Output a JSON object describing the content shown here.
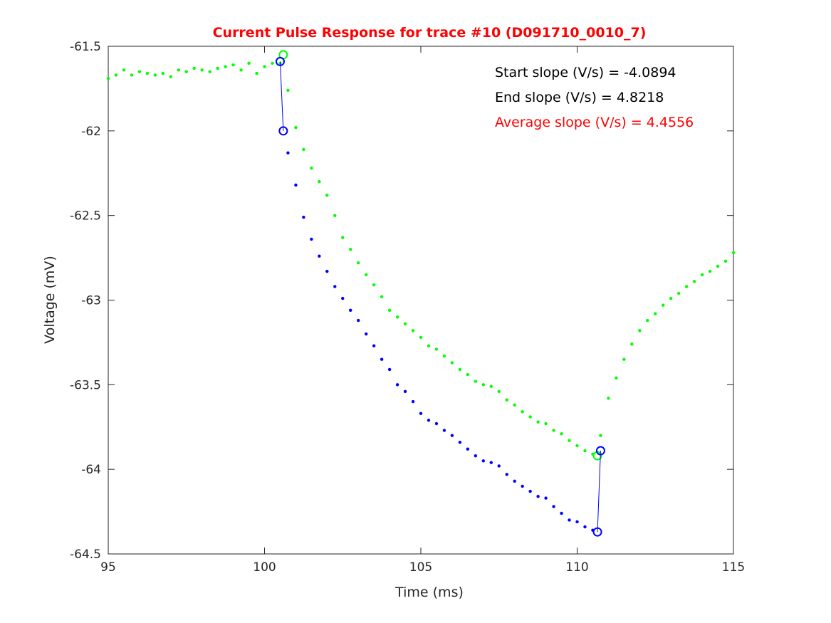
{
  "chart_data": {
    "type": "scatter",
    "title": "Current Pulse Response for trace #10 (D091710_0010_7)",
    "title_color": "#ff0000",
    "xlabel": "Time (ms)",
    "ylabel": "Voltage (mV)",
    "xlim": [
      95,
      115
    ],
    "xticks": [
      95,
      100,
      105,
      110,
      115
    ],
    "ylim": [
      -64.5,
      -61.5
    ],
    "yticks": [
      -61.5,
      -62,
      -62.5,
      -63,
      -63.5,
      -64,
      -64.5
    ],
    "annotations": [
      {
        "text": "Start slope (V/s) = -4.0894",
        "color": "#000000"
      },
      {
        "text": "End slope (V/s) = 4.8218",
        "color": "#000000"
      },
      {
        "text": "Average slope (V/s) = 4.4556",
        "color": "#ff0000"
      }
    ],
    "series": [
      {
        "style": "dots",
        "color": "#00ff00",
        "x": [
          95,
          95.25,
          95.5,
          95.75,
          96,
          96.25,
          96.5,
          96.75,
          97,
          97.25,
          97.5,
          97.75,
          98,
          98.25,
          98.5,
          98.75,
          99,
          99.25,
          99.5,
          99.75,
          100,
          100.25,
          100.5,
          100.75,
          101,
          101.25,
          101.5,
          101.75,
          102,
          102.25,
          102.5,
          102.75,
          103,
          103.25,
          103.5,
          103.75,
          104,
          104.25,
          104.5,
          104.75,
          105,
          105.25,
          105.5,
          105.75,
          106,
          106.25,
          106.5,
          106.75,
          107,
          107.25,
          107.5,
          107.75,
          108,
          108.25,
          108.5,
          108.75,
          109,
          109.25,
          109.5,
          109.75,
          110,
          110.25,
          110.5,
          110.75,
          111,
          111.25,
          111.5,
          111.75,
          112,
          112.25,
          112.5,
          112.75,
          113,
          113.25,
          113.5,
          113.75,
          114,
          114.25,
          114.5,
          114.75,
          115
        ],
        "values": [
          -61.69,
          -61.67,
          -61.64,
          -61.67,
          -61.65,
          -61.66,
          -61.67,
          -61.66,
          -61.68,
          -61.64,
          -61.65,
          -61.63,
          -61.64,
          -61.65,
          -61.63,
          -61.62,
          -61.61,
          -61.64,
          -61.6,
          -61.66,
          -61.62,
          -61.6,
          -61.6,
          -61.76,
          -61.98,
          -62.11,
          -62.22,
          -62.3,
          -62.38,
          -62.5,
          -62.63,
          -62.7,
          -62.78,
          -62.85,
          -62.91,
          -62.98,
          -63.06,
          -63.1,
          -63.14,
          -63.18,
          -63.22,
          -63.27,
          -63.29,
          -63.33,
          -63.37,
          -63.41,
          -63.44,
          -63.48,
          -63.5,
          -63.51,
          -63.54,
          -63.59,
          -63.62,
          -63.66,
          -63.69,
          -63.72,
          -63.73,
          -63.77,
          -63.79,
          -63.83,
          -63.86,
          -63.89,
          -63.91,
          -63.8,
          -63.58,
          -63.46,
          -63.35,
          -63.26,
          -63.18,
          -63.12,
          -63.08,
          -63.03,
          -62.99,
          -62.96,
          -62.92,
          -62.89,
          -62.85,
          -62.83,
          -62.8,
          -62.77,
          -62.72
        ]
      },
      {
        "style": "dots",
        "color": "#0000ff",
        "x": [
          100.75,
          101,
          101.25,
          101.5,
          101.75,
          102,
          102.25,
          102.5,
          102.75,
          103,
          103.25,
          103.5,
          103.75,
          104,
          104.25,
          104.5,
          104.75,
          105,
          105.25,
          105.5,
          105.75,
          106,
          106.25,
          106.5,
          106.75,
          107,
          107.25,
          107.5,
          107.75,
          108,
          108.25,
          108.5,
          108.75,
          109,
          109.25,
          109.5,
          109.75,
          110,
          110.25,
          110.5
        ],
        "values": [
          -62.13,
          -62.32,
          -62.51,
          -62.64,
          -62.74,
          -62.83,
          -62.92,
          -62.99,
          -63.06,
          -63.12,
          -63.2,
          -63.27,
          -63.35,
          -63.41,
          -63.5,
          -63.54,
          -63.6,
          -63.67,
          -63.71,
          -63.73,
          -63.77,
          -63.8,
          -63.84,
          -63.88,
          -63.92,
          -63.95,
          -63.96,
          -63.98,
          -64.03,
          -64.07,
          -64.1,
          -64.13,
          -64.16,
          -64.17,
          -64.22,
          -64.26,
          -64.3,
          -64.31,
          -64.34,
          -64.36
        ]
      },
      {
        "style": "circles",
        "color": "#00ff00",
        "x": [
          100.6,
          110.65
        ],
        "values": [
          -61.55,
          -63.92
        ]
      },
      {
        "style": "circles-line",
        "color": "#0000ff",
        "x": [
          100.5,
          100.6
        ],
        "values": [
          -61.59,
          -62
        ]
      },
      {
        "style": "circles-line",
        "color": "#0000ff",
        "x": [
          110.65,
          110.75
        ],
        "values": [
          -64.37,
          -63.89
        ]
      }
    ]
  }
}
